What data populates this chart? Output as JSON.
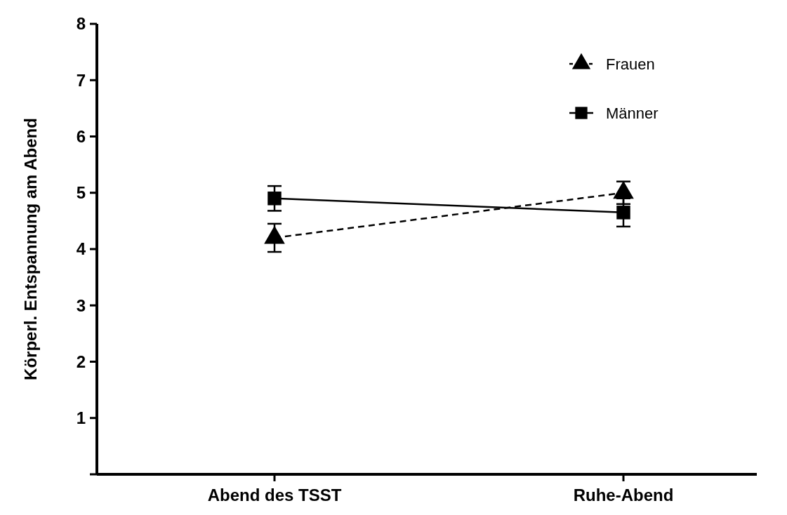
{
  "chart_data": {
    "type": "line",
    "ylabel": "Körperl. Entspannung am Abend",
    "categories": [
      "Abend des TSST",
      "Ruhe-Abend"
    ],
    "ylim": [
      0,
      8
    ],
    "yticks": [
      {
        "value": 0,
        "label": null
      },
      1,
      2,
      3,
      4,
      5,
      6,
      7,
      8
    ],
    "legend": "top right",
    "grid": false,
    "series": [
      {
        "name": "Frauen",
        "color": "#000000",
        "values": [
          4.2,
          5.0
        ],
        "errors": [
          0.25,
          0.2
        ],
        "marker": "triangle",
        "line_style": "dashed"
      },
      {
        "name": "Männer",
        "color": "#000000",
        "values": [
          4.9,
          4.65
        ],
        "errors": [
          0.22,
          0.25
        ],
        "marker": "square",
        "line_style": "solid"
      }
    ]
  }
}
